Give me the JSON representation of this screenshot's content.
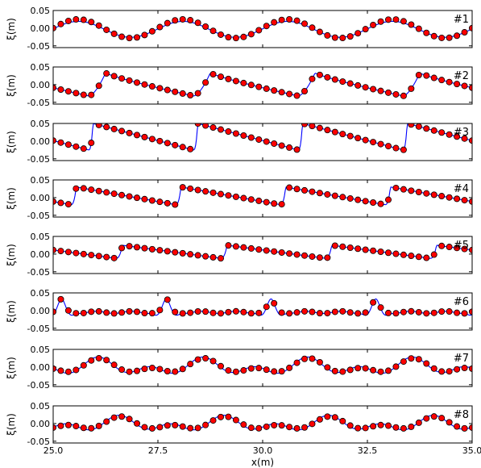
{
  "chart_data": {
    "type": "line",
    "xlabel": "x(m)",
    "ylabel": "ξ(m)",
    "xlim": [
      25.0,
      35.0
    ],
    "ylim": [
      -0.055,
      0.05
    ],
    "xticks": [
      25.0,
      27.5,
      30.0,
      32.5,
      35.0
    ],
    "xtick_labels": [
      "25.0",
      "27.5",
      "30.0",
      "32.5",
      "35.0"
    ],
    "yticks": [
      -0.05,
      0.0,
      0.05
    ],
    "ytick_labels": [
      "-0.05",
      "0.00",
      "0.05"
    ],
    "grid": false,
    "colors": {
      "line": "#0000ff",
      "marker_fill": "#ff0000",
      "marker_edge": "#000000"
    },
    "series_styles": [
      "solid blue line",
      "red circle markers with black edge"
    ],
    "marker_count": 56,
    "wave_period_m": 2.5,
    "panels": [
      {
        "label": "#1",
        "crest_x": [
          25.6,
          28.1,
          30.6,
          33.1
        ],
        "crest_amplitude": 0.025,
        "trough_amplitude": -0.028,
        "line_values_same_as_markers": true
      },
      {
        "label": "#2",
        "crest_x": [
          26.25,
          28.75,
          31.25,
          33.75
        ],
        "crest_amplitude": 0.033,
        "trough_amplitude": -0.032
      },
      {
        "label": "#3",
        "crest_x": [
          25.95,
          28.45,
          30.95,
          33.45
        ],
        "crest_amplitude": 0.05,
        "trough_amplitude": -0.025
      },
      {
        "label": "#4",
        "crest_x": [
          25.55,
          28.05,
          30.55,
          33.05
        ],
        "crest_amplitude": 0.03,
        "trough_amplitude": -0.02
      },
      {
        "label": "#5",
        "crest_x": [
          26.65,
          29.15,
          31.65,
          34.15
        ],
        "crest_amplitude": 0.025,
        "trough_amplitude": -0.012
      },
      {
        "label": "#6",
        "crest_x": [
          25.2,
          27.7,
          30.2,
          32.7
        ],
        "crest_amplitude": 0.03,
        "trough_amplitude": -0.005
      },
      {
        "label": "#7",
        "crest_x": [
          26.1,
          28.6,
          31.1,
          33.6
        ],
        "crest_amplitude": 0.025,
        "trough_amplitude": -0.008
      },
      {
        "label": "#8",
        "crest_x": [
          26.6,
          29.1,
          31.6,
          34.1
        ],
        "crest_amplitude": 0.022,
        "trough_amplitude": -0.015
      }
    ]
  }
}
